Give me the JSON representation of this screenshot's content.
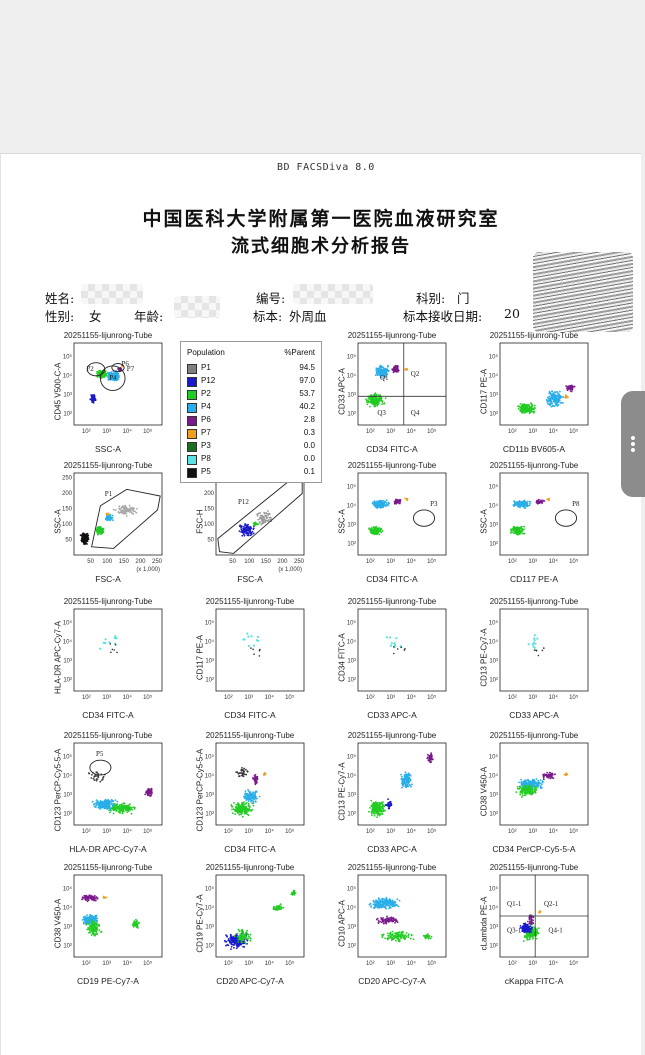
{
  "header": {
    "software": "BD FACSDiva 8.0",
    "title_line1": "中国医科大学附属第一医院血液研究室",
    "title_line2": "流式细胞术分析报告"
  },
  "patient_info": {
    "name_label": "姓名:",
    "id_label": "编号:",
    "dept_label": "科别:",
    "dept_value": "门",
    "sex_label": "性别:",
    "sex_value": "女",
    "age_label": "年龄:",
    "specimen_label": "标本:",
    "specimen_value": "外周血",
    "received_label": "标本接收日期:",
    "received_value": "20"
  },
  "colors": {
    "P1": "#808080",
    "P12": "#1a1acc",
    "P2": "#22cc22",
    "P4": "#2aaee8",
    "P6": "#7a1a8c",
    "P7": "#f0a020",
    "P3": "#1f6e1f",
    "P8": "#5ae0e0",
    "P5": "#111111"
  },
  "population_table": {
    "header_population": "Population",
    "header_parent": "%Parent",
    "rows": [
      {
        "name": "P1",
        "value": "94.5",
        "color": "#808080"
      },
      {
        "name": "P12",
        "value": "97.0",
        "color": "#1a1acc"
      },
      {
        "name": "P2",
        "value": "53.7",
        "color": "#22cc22"
      },
      {
        "name": "P4",
        "value": "40.2",
        "color": "#2aaee8"
      },
      {
        "name": "P6",
        "value": "2.8",
        "color": "#7a1a8c"
      },
      {
        "name": "P7",
        "value": "0.3",
        "color": "#f0a020"
      },
      {
        "name": "P3",
        "value": "0.0",
        "color": "#1f6e1f"
      },
      {
        "name": "P8",
        "value": "0.0",
        "color": "#5ae0e0"
      },
      {
        "name": "P5",
        "value": "0.1",
        "color": "#111111"
      }
    ]
  },
  "plots": [
    {
      "title": "20251155-lijunrong-Tube",
      "x": "SSC-A",
      "y": "CD45 V500-C-A",
      "kind": "cd45",
      "ticks": "log",
      "gates": [
        "P2",
        "P4",
        "P6",
        "P7"
      ]
    },
    {
      "title": "",
      "x": "",
      "y": "",
      "kind": "hidden",
      "ticks": "log",
      "gates": []
    },
    {
      "title": "20251155-lijunrong-Tube",
      "x": "CD34 FITC-A",
      "y": "CD33 APC-A",
      "kind": "quad",
      "ticks": "log",
      "gates": [
        "Q1",
        "Q2",
        "Q3",
        "Q4"
      ]
    },
    {
      "title": "20251155-lijunrong-Tube",
      "x": "CD11b BV605-A",
      "y": "CD117 PE-A",
      "kind": "cd11b",
      "ticks": "log",
      "gates": []
    },
    {
      "title": "20251155-lijunrong-Tube",
      "x": "FSC-A",
      "y": "SSC-A",
      "kind": "fsc",
      "ticks": "lin",
      "gates": [
        "P1"
      ],
      "unit": "(x 1,000)"
    },
    {
      "title": "",
      "x": "FSC-A",
      "y": "FSC-H",
      "kind": "fsch",
      "ticks": "lin",
      "gates": [
        "P12"
      ],
      "unit": "(x 1,000)"
    },
    {
      "title": "20251155-lijunrong-Tube",
      "x": "CD34 FITC-A",
      "y": "SSC-A",
      "kind": "sscgate",
      "ticks": "log",
      "gates": [
        "P3"
      ]
    },
    {
      "title": "20251155-lijunrong-Tube",
      "x": "CD117 PE-A",
      "y": "SSC-A",
      "kind": "sscgate",
      "ticks": "log",
      "gates": [
        "P8"
      ]
    },
    {
      "title": "20251155-lijunrong-Tube",
      "x": "CD34 FITC-A",
      "y": "HLA-DR APC-Cy7-A",
      "kind": "sparse",
      "ticks": "log",
      "gates": []
    },
    {
      "title": "20251155-lijunrong-Tube",
      "x": "CD34 FITC-A",
      "y": "CD117 PE-A",
      "kind": "sparse",
      "ticks": "log",
      "gates": []
    },
    {
      "title": "20251155-lijunrong-Tube",
      "x": "CD33 APC-A",
      "y": "CD34 FITC-A",
      "kind": "sparse",
      "ticks": "log",
      "gates": []
    },
    {
      "title": "20251155-lijunrong-Tube",
      "x": "CD33 APC-A",
      "y": "CD13 PE-Cy7-A",
      "kind": "sparse",
      "ticks": "log",
      "gates": []
    },
    {
      "title": "20251155-lijunrong-Tube",
      "x": "HLA-DR APC-Cy7-A",
      "y": "CD123 PerCP-Cy5-5-A",
      "kind": "cd123a",
      "ticks": "log",
      "gates": [
        "P5"
      ]
    },
    {
      "title": "20251155-lijunrong-Tube",
      "x": "CD34 FITC-A",
      "y": "CD123 PerCP-Cy5-5-A",
      "kind": "cd123b",
      "ticks": "log",
      "gates": []
    },
    {
      "title": "20251155-lijunrong-Tube",
      "x": "CD33 APC-A",
      "y": "CD13 PE-Cy7-A",
      "kind": "diag",
      "ticks": "log",
      "gates": []
    },
    {
      "title": "20251155-lijunrong-Tube",
      "x": "CD34 PerCP-Cy5-5-A",
      "y": "CD38 V450-A",
      "kind": "cd38",
      "ticks": "log",
      "gates": []
    },
    {
      "title": "20251155-lijunrong-Tube",
      "x": "CD19 PE-Cy7-A",
      "y": "CD38 V450-A",
      "kind": "cd19",
      "ticks": "log",
      "gates": []
    },
    {
      "title": "20251155-lijunrong-Tube",
      "x": "CD20 APC-Cy7-A",
      "y": "CD19 PE-Cy7-A",
      "kind": "cd20",
      "ticks": "log",
      "gates": []
    },
    {
      "title": "20251155-lijunrong-Tube",
      "x": "CD20 APC-Cy7-A",
      "y": "CD10 APC-A",
      "kind": "cd10",
      "ticks": "log",
      "gates": []
    },
    {
      "title": "20251155-lijunrong-Tube",
      "x": "cKappa FITC-A",
      "y": "cLambda PE-A",
      "kind": "kappa",
      "ticks": "log",
      "gates": [
        "Q1-1",
        "Q2-1",
        "Q3-1",
        "Q4-1"
      ]
    }
  ]
}
